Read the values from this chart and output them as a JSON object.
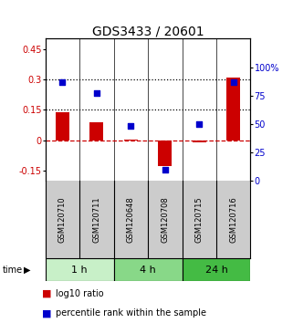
{
  "title": "GDS3433 / 20601",
  "samples": [
    "GSM120710",
    "GSM120711",
    "GSM120648",
    "GSM120708",
    "GSM120715",
    "GSM120716"
  ],
  "log10_ratio": [
    0.14,
    0.09,
    0.005,
    -0.125,
    -0.01,
    0.31
  ],
  "percentile_rank": [
    87,
    77,
    48,
    10,
    50,
    87
  ],
  "time_groups": [
    {
      "label": "1 h",
      "start": 0,
      "end": 2,
      "color": "#c8f0c8"
    },
    {
      "label": "4 h",
      "start": 2,
      "end": 4,
      "color": "#88d888"
    },
    {
      "label": "24 h",
      "start": 4,
      "end": 6,
      "color": "#44bb44"
    }
  ],
  "bar_color": "#cc0000",
  "dot_color": "#0000cc",
  "ylim_left": [
    -0.2,
    0.5
  ],
  "ylim_right": [
    0,
    125
  ],
  "yticks_left": [
    -0.15,
    0,
    0.15,
    0.3,
    0.45
  ],
  "yticks_right": [
    0,
    25,
    50,
    75,
    100
  ],
  "hlines_dotted": [
    0.15,
    0.3
  ],
  "hline_zero_color": "#cc0000",
  "hline_dotted_color": "#000000",
  "background_color": "#ffffff",
  "sample_box_color": "#cccccc",
  "legend_red_label": "log10 ratio",
  "legend_blue_label": "percentile rank within the sample",
  "time_label": "time",
  "title_fontsize": 10,
  "tick_fontsize": 7,
  "sample_fontsize": 6,
  "time_fontsize": 8,
  "legend_fontsize": 7
}
